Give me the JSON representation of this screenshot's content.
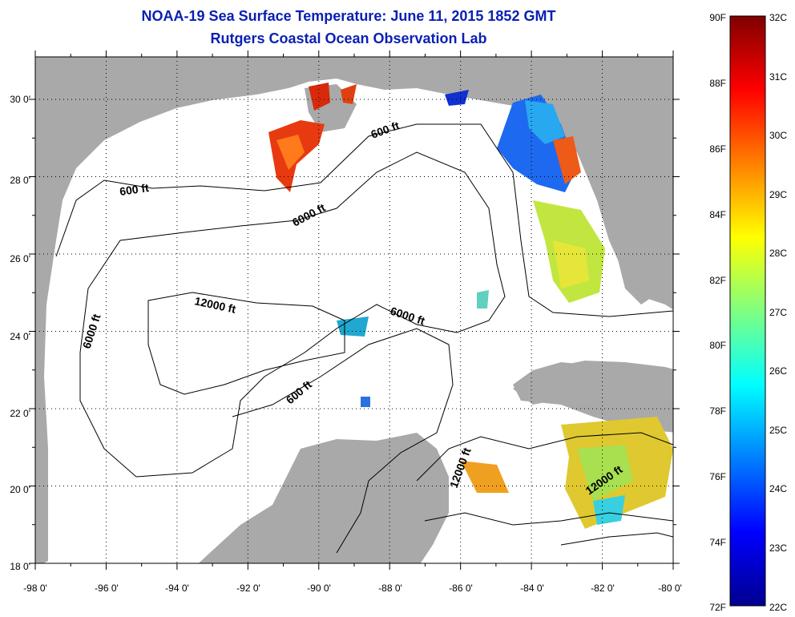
{
  "header": {
    "title": "NOAA-19 Sea Surface Temperature:  June 11, 2015 1852 GMT",
    "subtitle": "Rutgers Coastal Ocean Observation Lab"
  },
  "map": {
    "lon_labels": [
      "-98 0'",
      "-96 0'",
      "-94 0'",
      "-92 0'",
      "-90 0'",
      "-88 0'",
      "-86 0'",
      "-84 0'",
      "-82 0'",
      "-80 0'"
    ],
    "lat_labels": [
      "30 0'",
      "28 0'",
      "26 0'",
      "24 0'",
      "22 0'",
      "20 0'",
      "18 0'"
    ],
    "contour_labels": [
      "600 ft",
      "6000 ft",
      "600 ft",
      "6000 ft",
      "12000 ft",
      "6000 ft",
      "600 ft",
      "12000 ft",
      "12000 ft"
    ],
    "colors": {
      "land": "#a9a9a9",
      "ocean": "#ffffff",
      "contour": "#000000",
      "title": "#0a1fb4"
    }
  },
  "colorbar": {
    "f_labels": [
      "90F",
      "88F",
      "86F",
      "84F",
      "82F",
      "80F",
      "78F",
      "76F",
      "74F",
      "72F"
    ],
    "c_labels": [
      "32C",
      "31C",
      "30C",
      "29C",
      "28C",
      "27C",
      "26C",
      "25C",
      "24C",
      "23C",
      "22C"
    ],
    "colormap": "jet"
  }
}
